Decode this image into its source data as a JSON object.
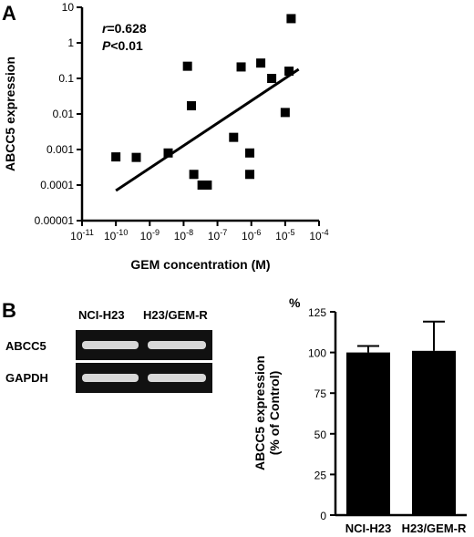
{
  "panel_a_letter": "A",
  "panel_b_letter": "B",
  "chart_data": [
    {
      "type": "scatter",
      "xlabel": "GEM concentration (M)",
      "ylabel": "ABCC5 expression",
      "x_scale": "log",
      "y_scale": "log",
      "xlim": [
        1e-11,
        0.0001
      ],
      "ylim": [
        1e-05,
        10
      ],
      "x_ticks": [
        {
          "value": 1e-11,
          "base": "10",
          "exp": "-11"
        },
        {
          "value": 1e-10,
          "base": "10",
          "exp": "-10"
        },
        {
          "value": 1e-09,
          "base": "10",
          "exp": "-9"
        },
        {
          "value": 1e-08,
          "base": "10",
          "exp": "-8"
        },
        {
          "value": 1e-07,
          "base": "10",
          "exp": "-7"
        },
        {
          "value": 1e-06,
          "base": "10",
          "exp": "-6"
        },
        {
          "value": 1e-05,
          "base": "10",
          "exp": "-5"
        },
        {
          "value": 0.0001,
          "base": "10",
          "exp": "-4"
        }
      ],
      "y_ticks": [
        {
          "value": 10,
          "label": "10"
        },
        {
          "value": 1,
          "label": "1"
        },
        {
          "value": 0.1,
          "label": "0.1"
        },
        {
          "value": 0.01,
          "label": "0.01"
        },
        {
          "value": 0.001,
          "label": "0.001"
        },
        {
          "value": 0.0001,
          "label": "0.0001"
        },
        {
          "value": 1e-05,
          "label": "0.00001"
        }
      ],
      "points": [
        {
          "x": 1e-10,
          "y": 0.00062
        },
        {
          "x": 4e-10,
          "y": 0.0006
        },
        {
          "x": 3.5e-09,
          "y": 0.0008
        },
        {
          "x": 1.3e-08,
          "y": 0.22
        },
        {
          "x": 1.7e-08,
          "y": 0.017
        },
        {
          "x": 2e-08,
          "y": 0.0002
        },
        {
          "x": 3.5e-08,
          "y": 0.0001
        },
        {
          "x": 5e-08,
          "y": 0.0001
        },
        {
          "x": 3e-07,
          "y": 0.0022
        },
        {
          "x": 5e-07,
          "y": 0.21
        },
        {
          "x": 9e-07,
          "y": 0.0008
        },
        {
          "x": 9e-07,
          "y": 0.0002
        },
        {
          "x": 1.9e-06,
          "y": 0.27
        },
        {
          "x": 4e-06,
          "y": 0.1
        },
        {
          "x": 1e-05,
          "y": 0.011
        },
        {
          "x": 1.3e-05,
          "y": 0.16
        },
        {
          "x": 1.5e-05,
          "y": 4.8
        }
      ],
      "fit_line": {
        "x": [
          1e-10,
          2.5e-05
        ],
        "y": [
          7e-05,
          0.18
        ]
      },
      "annotations": {
        "r_symbol": "r",
        "r_value": "=0.628",
        "p_symbol": "P",
        "p_value": "<0.01"
      }
    },
    {
      "type": "bar",
      "categories": [
        "NCI-H23",
        "H23/GEM-R"
      ],
      "values": [
        100,
        101
      ],
      "errors": [
        4,
        18
      ],
      "ylim": [
        0,
        125
      ],
      "y_ticks": [
        "0",
        "25",
        "50",
        "75",
        "100",
        "125"
      ],
      "ylabel_line1": "ABCC5 expression",
      "ylabel_line2": "(% of Control)",
      "y_unit": "%"
    }
  ],
  "gel": {
    "lanes": [
      "NCI-H23",
      "H23/GEM-R"
    ],
    "rows": [
      "ABCC5",
      "GAPDH"
    ],
    "band_color": "#d8d8d8",
    "background_color": "#111111"
  }
}
